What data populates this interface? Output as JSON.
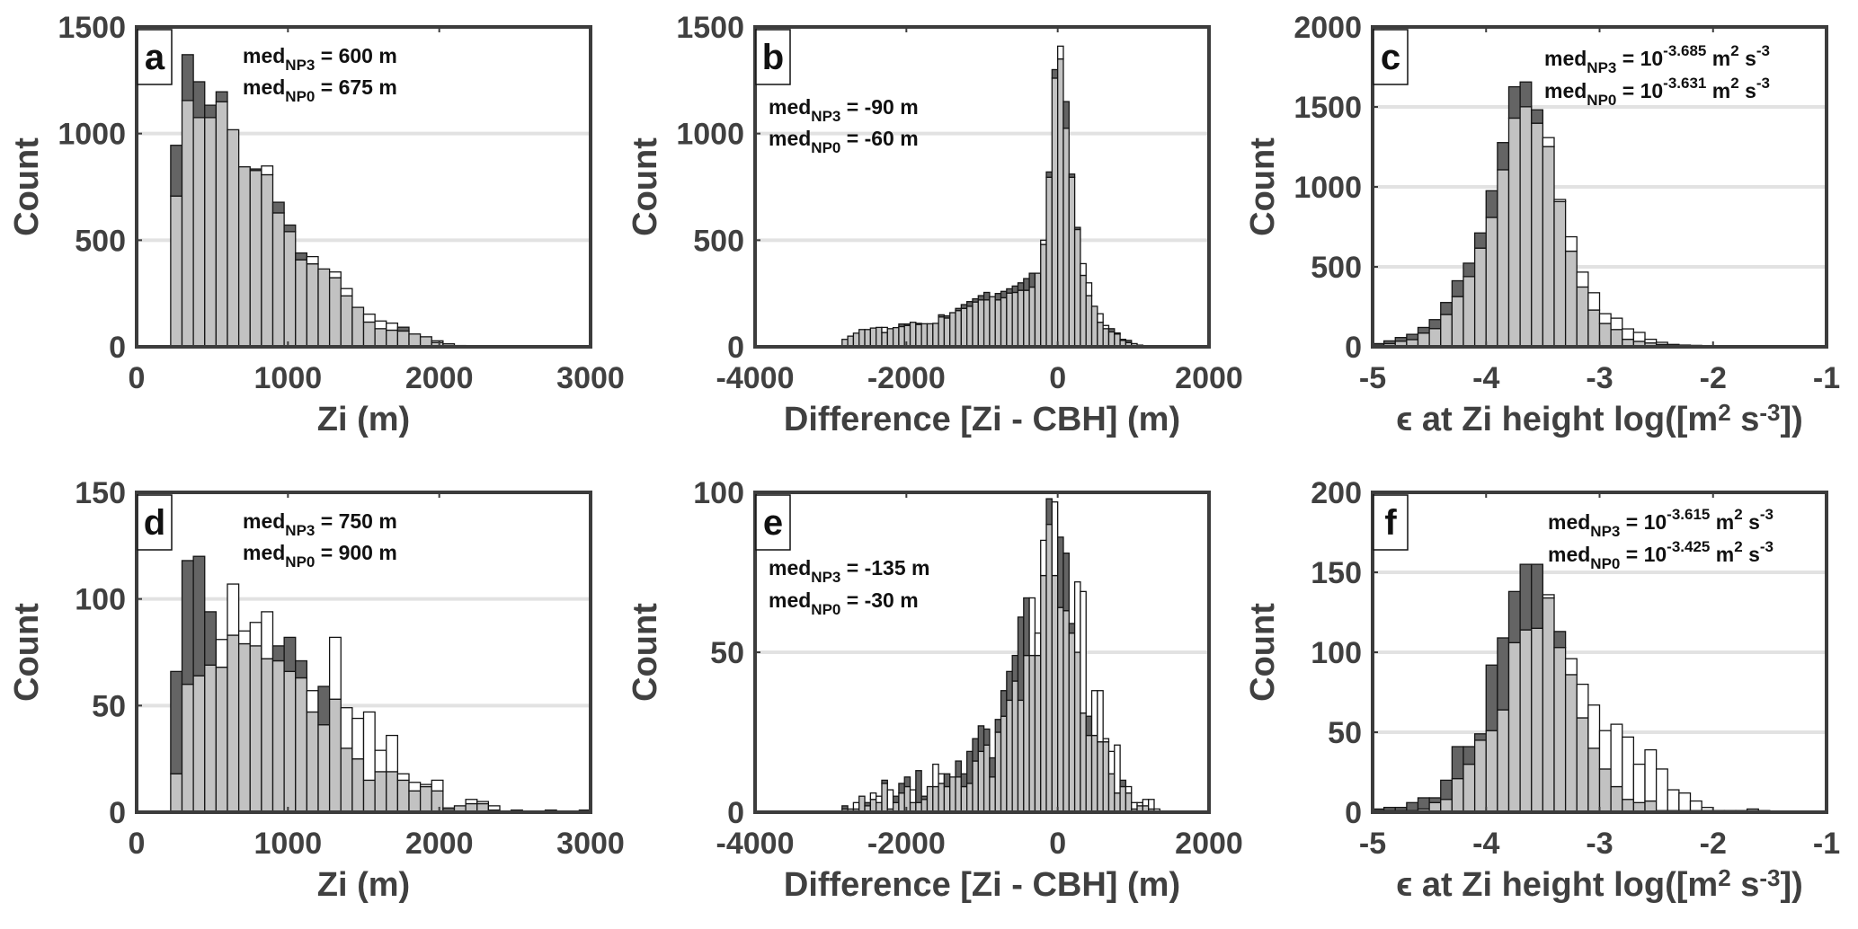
{
  "colors": {
    "np3": "#646464",
    "overlap": "#c2c2c2",
    "np0": "#ffffff",
    "axis": "#3c3c3c",
    "grid": "#e2e2e2",
    "text": "#404040"
  },
  "chart_data": [
    {
      "type": "bar",
      "panel_label": "a",
      "ylabel": "Count",
      "xlabel": [
        {
          "t": "Zi (m)"
        }
      ],
      "xlim": [
        0,
        3000
      ],
      "ylim": [
        0,
        1500
      ],
      "xticks": [
        "0",
        "1000",
        "2000",
        "3000"
      ],
      "yticks": [
        "0",
        "500",
        "1000",
        "1500"
      ],
      "bin_start": 225,
      "bin_width": 75,
      "annotation": [
        [
          {
            "t": "med"
          },
          {
            "t": "NP3",
            "s": "sub"
          },
          {
            "t": " = 600 m"
          }
        ],
        [
          {
            "t": "med"
          },
          {
            "t": "NP0",
            "s": "sub"
          },
          {
            "t": " = 675 m"
          }
        ]
      ],
      "series": [
        {
          "name": "NP3",
          "values": [
            945,
            1370,
            1243,
            1133,
            1196,
            1018,
            844,
            834,
            807,
            678,
            571,
            440,
            389,
            365,
            324,
            239,
            185,
            116,
            85,
            78,
            92,
            60,
            47,
            20,
            14,
            6,
            3,
            3,
            2,
            2,
            1,
            1,
            1,
            1,
            1,
            2,
            1
          ]
        },
        {
          "name": "NP0",
          "values": [
            707,
            1155,
            1075,
            1075,
            1149,
            1018,
            844,
            827,
            848,
            628,
            540,
            408,
            423,
            365,
            351,
            273,
            185,
            153,
            121,
            111,
            74,
            60,
            47,
            28,
            14,
            6,
            3,
            3,
            2,
            2,
            1,
            1,
            1,
            1,
            1,
            1,
            1
          ]
        }
      ]
    },
    {
      "type": "bar",
      "panel_label": "b",
      "ylabel": "Count",
      "xlabel": [
        {
          "t": "Difference [Zi - CBH] (m)"
        }
      ],
      "xlim": [
        -4000,
        2000
      ],
      "ylim": [
        0,
        1500
      ],
      "xticks": [
        "-4000",
        "-2000",
        "0",
        "2000"
      ],
      "yticks": [
        "0",
        "500",
        "1000",
        "1500"
      ],
      "bin_start": -2925,
      "bin_width": 75,
      "annotation": [
        [
          {
            "t": "med"
          },
          {
            "t": "NP3",
            "s": "sub"
          },
          {
            "t": " = -90 m"
          }
        ],
        [
          {
            "t": "med"
          },
          {
            "t": "NP0",
            "s": "sub"
          },
          {
            "t": " = -60 m"
          }
        ]
      ],
      "series": [
        {
          "name": "NP3",
          "values": [
            3,
            35,
            50,
            64,
            81,
            81,
            88,
            91,
            67,
            85,
            90,
            107,
            107,
            115,
            110,
            108,
            108,
            110,
            150,
            145,
            160,
            180,
            198,
            212,
            225,
            240,
            255,
            235,
            250,
            260,
            272,
            285,
            300,
            320,
            345,
            345,
            480,
            820,
            1300,
            1350,
            1150,
            810,
            560,
            335,
            240,
            190,
            115,
            85,
            85,
            65,
            35,
            30,
            15,
            8,
            5,
            4,
            3,
            2,
            1,
            0
          ]
        },
        {
          "name": "NP0",
          "values": [
            3,
            35,
            50,
            64,
            81,
            81,
            88,
            91,
            91,
            85,
            90,
            95,
            100,
            115,
            105,
            108,
            108,
            110,
            140,
            135,
            160,
            170,
            180,
            190,
            210,
            220,
            220,
            235,
            220,
            230,
            252,
            255,
            265,
            265,
            280,
            345,
            500,
            795,
            1260,
            1410,
            1025,
            795,
            550,
            390,
            300,
            190,
            155,
            100,
            70,
            60,
            30,
            20,
            15,
            8,
            5,
            4,
            3,
            2,
            1,
            0
          ]
        }
      ]
    },
    {
      "type": "bar",
      "panel_label": "c",
      "ylabel": "Count",
      "xlabel": [
        {
          "t": "ϵ at Zi height log([m"
        },
        {
          "t": "2",
          "s": "sup"
        },
        {
          "t": " s"
        },
        {
          "t": "-3",
          "s": "sup"
        },
        {
          "t": "])"
        }
      ],
      "xlim": [
        -5,
        -1
      ],
      "ylim": [
        0,
        2000
      ],
      "xticks": [
        "-5",
        "-4",
        "-3",
        "-2",
        "-1"
      ],
      "yticks": [
        "0",
        "500",
        "1000",
        "1500",
        "2000"
      ],
      "bin_start": -5,
      "bin_width": 0.1,
      "annotation": [
        [
          {
            "t": "med"
          },
          {
            "t": "NP3",
            "s": "sub"
          },
          {
            "t": " = 10"
          },
          {
            "t": "-3.685",
            "s": "sup"
          },
          {
            "t": " m"
          },
          {
            "t": "2",
            "s": "sup"
          },
          {
            "t": " s"
          },
          {
            "t": "-3",
            "s": "sup"
          }
        ],
        [
          {
            "t": "med"
          },
          {
            "t": "NP0",
            "s": "sub"
          },
          {
            "t": " = 10"
          },
          {
            "t": "-3.631",
            "s": "sup"
          },
          {
            "t": " m"
          },
          {
            "t": "2",
            "s": "sup"
          },
          {
            "t": " s"
          },
          {
            "t": "-3",
            "s": "sup"
          }
        ]
      ],
      "series": [
        {
          "name": "NP3",
          "values": [
            20,
            37,
            58,
            78,
            121,
            170,
            277,
            413,
            523,
            712,
            976,
            1277,
            1626,
            1656,
            1482,
            1252,
            908,
            598,
            374,
            230,
            146,
            108,
            47,
            34,
            24,
            15,
            10,
            8,
            6,
            5,
            4,
            3,
            2,
            1,
            1
          ]
        },
        {
          "name": "NP0",
          "values": [
            10,
            20,
            35,
            45,
            86,
            114,
            202,
            314,
            439,
            617,
            809,
            1107,
            1430,
            1501,
            1398,
            1308,
            921,
            688,
            467,
            338,
            207,
            179,
            112,
            90,
            47,
            28,
            15,
            11,
            9,
            6,
            4,
            3,
            2,
            2,
            1
          ]
        }
      ]
    },
    {
      "type": "bar",
      "panel_label": "d",
      "ylabel": "Count",
      "xlabel": [
        {
          "t": "Zi (m)"
        }
      ],
      "xlim": [
        0,
        3000
      ],
      "ylim": [
        0,
        150
      ],
      "xticks": [
        "0",
        "1000",
        "2000",
        "3000"
      ],
      "yticks": [
        "0",
        "50",
        "100",
        "150"
      ],
      "bin_start": 225,
      "bin_width": 75,
      "annotation": [
        [
          {
            "t": "med"
          },
          {
            "t": "NP3",
            "s": "sub"
          },
          {
            "t": " = 750 m"
          }
        ],
        [
          {
            "t": "med"
          },
          {
            "t": "NP0",
            "s": "sub"
          },
          {
            "t": " = 900 m"
          }
        ]
      ],
      "series": [
        {
          "name": "NP3",
          "values": [
            66,
            118,
            120,
            94,
            68,
            83,
            79,
            78,
            72,
            78,
            82,
            71,
            47,
            59,
            53,
            30,
            25,
            15,
            19,
            19,
            15,
            10,
            12,
            10,
            2,
            3,
            4,
            4,
            1,
            0,
            0,
            0,
            0,
            0,
            0,
            0,
            1
          ]
        },
        {
          "name": "NP0",
          "values": [
            18,
            60,
            64,
            69,
            81,
            107,
            85,
            89,
            94,
            71,
            66,
            63,
            57,
            41,
            82,
            49,
            44,
            47,
            29,
            36,
            18,
            14,
            13,
            15,
            0,
            3,
            6,
            5,
            3,
            0,
            1,
            0,
            0,
            1,
            0,
            0,
            0
          ]
        }
      ]
    },
    {
      "type": "bar",
      "panel_label": "e",
      "ylabel": "Count",
      "xlabel": [
        {
          "t": "Difference [Zi - CBH] (m)"
        }
      ],
      "xlim": [
        -4000,
        2000
      ],
      "ylim": [
        0,
        100
      ],
      "xticks": [
        "-4000",
        "-2000",
        "0",
        "2000"
      ],
      "yticks": [
        "0",
        "50",
        "100"
      ],
      "bin_start": -2925,
      "bin_width": 75,
      "annotation": [
        [
          {
            "t": "med"
          },
          {
            "t": "NP3",
            "s": "sub"
          },
          {
            "t": " = -135 m"
          }
        ],
        [
          {
            "t": "med"
          },
          {
            "t": "NP0",
            "s": "sub"
          },
          {
            "t": " = -30 m"
          }
        ]
      ],
      "series": [
        {
          "name": "NP3",
          "values": [
            0,
            2,
            1,
            1,
            5,
            3,
            4,
            3,
            10,
            1,
            5,
            9,
            11,
            3,
            13,
            5,
            8,
            8,
            9,
            12,
            11,
            16,
            12,
            19,
            23,
            27,
            26,
            17,
            29,
            38,
            44,
            49,
            61,
            67,
            49,
            49,
            74,
            98,
            74,
            86,
            81,
            59,
            50,
            31,
            30,
            24,
            22,
            22,
            12,
            6,
            10,
            6,
            1,
            2,
            2,
            1,
            0
          ]
        },
        {
          "name": "NP0",
          "values": [
            0,
            1,
            1,
            3,
            5,
            2,
            6,
            5,
            9,
            7,
            3,
            6,
            8,
            7,
            3,
            4,
            8,
            15,
            12,
            8,
            11,
            11,
            8,
            9,
            16,
            19,
            21,
            11,
            25,
            30,
            35,
            41,
            35,
            49,
            67,
            56,
            85,
            90,
            97,
            64,
            63,
            56,
            72,
            69,
            24,
            38,
            38,
            23,
            19,
            21,
            8,
            8,
            3,
            3,
            4,
            4,
            1
          ]
        }
      ]
    },
    {
      "type": "bar",
      "panel_label": "f",
      "ylabel": "Count",
      "xlabel": [
        {
          "t": "ϵ at Zi height log([m"
        },
        {
          "t": "2",
          "s": "sup"
        },
        {
          "t": " s"
        },
        {
          "t": "-3",
          "s": "sup"
        },
        {
          "t": "])"
        }
      ],
      "xlim": [
        -5,
        -1
      ],
      "ylim": [
        0,
        200
      ],
      "xticks": [
        "-5",
        "-4",
        "-3",
        "-2",
        "-1"
      ],
      "yticks": [
        "0",
        "50",
        "100",
        "150",
        "200"
      ],
      "bin_start": -5,
      "bin_width": 0.1,
      "annotation": [
        [
          {
            "t": "med"
          },
          {
            "t": "NP3",
            "s": "sub"
          },
          {
            "t": " = 10"
          },
          {
            "t": "-3.615",
            "s": "sup"
          },
          {
            "t": " m"
          },
          {
            "t": "2",
            "s": "sup"
          },
          {
            "t": " s"
          },
          {
            "t": "-3",
            "s": "sup"
          }
        ],
        [
          {
            "t": "med"
          },
          {
            "t": "NP0",
            "s": "sub"
          },
          {
            "t": " = 10"
          },
          {
            "t": "-3.425",
            "s": "sup"
          },
          {
            "t": " m"
          },
          {
            "t": "2",
            "s": "sup"
          },
          {
            "t": " s"
          },
          {
            "t": "-3",
            "s": "sup"
          }
        ]
      ],
      "series": [
        {
          "name": "NP3",
          "values": [
            2,
            3,
            3,
            6,
            9,
            9,
            20,
            41,
            41,
            49,
            92,
            109,
            138,
            155,
            155,
            134,
            113,
            86,
            59,
            40,
            27,
            16,
            8,
            6,
            7,
            1,
            1,
            1,
            1,
            1,
            1,
            1,
            1,
            1,
            0
          ]
        },
        {
          "name": "NP0",
          "values": [
            1,
            1,
            1,
            1,
            2,
            6,
            8,
            21,
            30,
            45,
            51,
            64,
            106,
            114,
            115,
            136,
            103,
            96,
            80,
            67,
            51,
            55,
            47,
            30,
            39,
            27,
            14,
            12,
            7,
            3,
            1,
            1,
            1,
            2,
            1
          ]
        }
      ]
    }
  ]
}
